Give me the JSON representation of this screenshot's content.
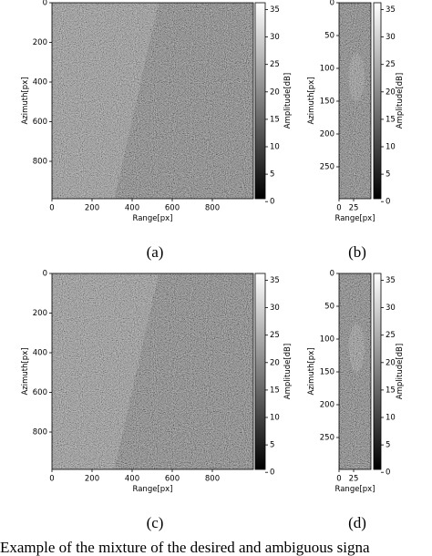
{
  "panels": [
    {
      "label": "(a)",
      "x_label": "Range[px]",
      "y_label": "Azimuth[px]",
      "colorbar_label": "Amplitude[dB]",
      "xticks": [
        0,
        200,
        400,
        600,
        800
      ],
      "yticks": [
        0,
        200,
        400,
        600,
        800
      ],
      "colorbar_ticks": [
        0,
        5,
        10,
        15,
        20,
        25,
        30,
        35
      ]
    },
    {
      "label": "(b)",
      "x_label": "Range[px]",
      "y_label": "Azimuth[px]",
      "colorbar_label": "Amplitude[dB]",
      "xticks": [
        0,
        25
      ],
      "yticks": [
        0,
        50,
        100,
        150,
        200,
        250
      ],
      "colorbar_ticks": [
        0,
        5,
        10,
        15,
        20,
        25,
        30,
        35
      ]
    },
    {
      "label": "(c)",
      "x_label": "Range[px]",
      "y_label": "Azimuth[px]",
      "colorbar_label": "Amplitude[dB]",
      "xticks": [
        0,
        200,
        400,
        600,
        800
      ],
      "yticks": [
        0,
        200,
        400,
        600,
        800
      ],
      "colorbar_ticks": [
        0,
        5,
        10,
        15,
        20,
        25,
        30,
        35
      ]
    },
    {
      "label": "(d)",
      "x_label": "Range[px]",
      "y_label": "Azimuth[px]",
      "colorbar_label": "Amplitude[dB]",
      "xticks": [
        0,
        25
      ],
      "yticks": [
        0,
        50,
        100,
        150,
        200,
        250
      ],
      "colorbar_ticks": [
        0,
        5,
        10,
        15,
        20,
        25,
        30,
        35
      ]
    }
  ],
  "caption": "Example of the mixture of the desired and ambiguous signa"
}
